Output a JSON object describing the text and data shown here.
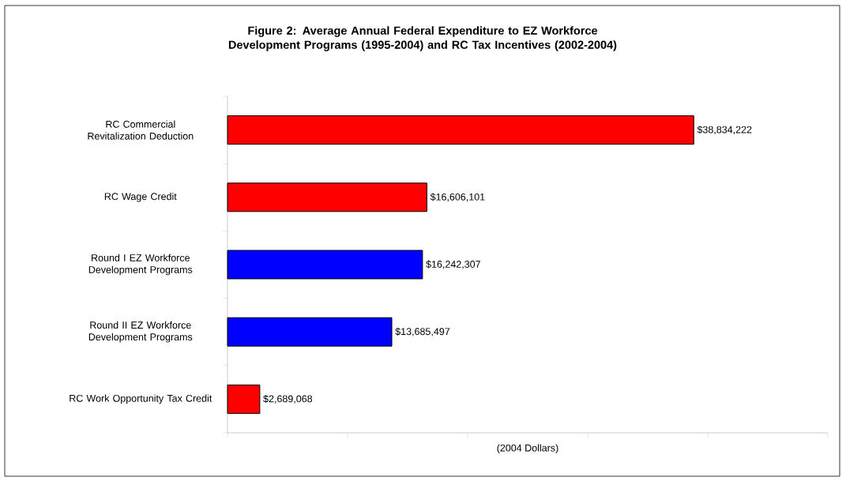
{
  "chart_data": {
    "type": "bar",
    "orientation": "horizontal",
    "title": "Figure 2: Average Annual Federal Expenditure to EZ Workforce Development Programs (1995-2004) and RC Tax Incentives (2002-2004)",
    "xlabel": "(2004 Dollars)",
    "categories": [
      "RC Commercial Revitalization Deduction",
      "RC Wage Credit",
      "Round I EZ Workforce Development Programs",
      "Round II EZ Workforce Development Programs",
      "RC Work Opportunity Tax Credit"
    ],
    "values": [
      38834222,
      16606101,
      16242307,
      13685497,
      2689068
    ],
    "value_labels": [
      "$38,834,222",
      "$16,606,101",
      "$16,242,307",
      "$13,685,497",
      "$2,689,068"
    ],
    "colors": [
      "#ff0000",
      "#ff0000",
      "#0000ff",
      "#0000ff",
      "#ff0000"
    ],
    "xlim": [
      0,
      50000000
    ],
    "xticks": [
      {
        "value": 0,
        "label": null
      },
      {
        "value": 10000000,
        "label": null
      },
      {
        "value": 20000000,
        "label": null
      },
      {
        "value": 30000000,
        "label": null
      },
      {
        "value": 40000000,
        "label": null
      },
      {
        "value": 50000000,
        "label": null
      }
    ],
    "tick_labels": "y"
  }
}
